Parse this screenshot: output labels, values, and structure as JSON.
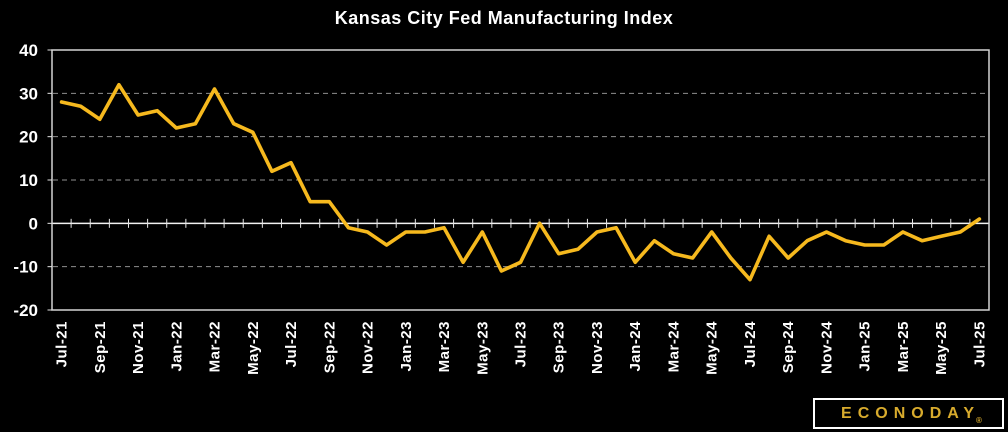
{
  "title": "Kansas City Fed Manufacturing Index",
  "logo": {
    "brand": "ECONODAY",
    "registered_mark": "®"
  },
  "colors": {
    "background": "#000000",
    "line": "#f6b91e",
    "text": "#ffffff",
    "gridline": "#8f8f8f",
    "zero_axis": "#f2f2f2",
    "plot_border": "#d4d4d4",
    "tick": "#e5e5e5",
    "logo_gold": "#d8ab2d",
    "logo_border": "#ffffff"
  },
  "chart_data": {
    "type": "line",
    "title": "Kansas City Fed Manufacturing Index",
    "series_name": "Kansas City Fed Manufacturing Index",
    "x": [
      "Jul-21",
      "Aug-21",
      "Sep-21",
      "Oct-21",
      "Nov-21",
      "Dec-21",
      "Jan-22",
      "Feb-22",
      "Mar-22",
      "Apr-22",
      "May-22",
      "Jun-22",
      "Jul-22",
      "Aug-22",
      "Sep-22",
      "Oct-22",
      "Nov-22",
      "Dec-22",
      "Jan-23",
      "Feb-23",
      "Mar-23",
      "Apr-23",
      "May-23",
      "Jun-23",
      "Jul-23",
      "Aug-23",
      "Sep-23",
      "Oct-23",
      "Nov-23",
      "Dec-23",
      "Jan-24",
      "Feb-24",
      "Mar-24",
      "Apr-24",
      "May-24",
      "Jun-24",
      "Jul-24",
      "Aug-24",
      "Sep-24",
      "Oct-24",
      "Nov-24",
      "Dec-24",
      "Jan-25",
      "Feb-25",
      "Mar-25",
      "Apr-25",
      "May-25",
      "Jun-25",
      "Jul-25"
    ],
    "values": [
      28,
      27,
      24,
      32,
      25,
      26,
      22,
      23,
      31,
      23,
      21,
      12,
      14,
      5,
      5,
      -1,
      -2,
      -5,
      -2,
      -2,
      -1,
      -9,
      -2,
      -11,
      -9,
      0,
      -7,
      -6,
      -2,
      -1,
      -9,
      -4,
      -7,
      -8,
      -2,
      -8,
      -13,
      -3,
      -8,
      -4,
      -2,
      -4,
      -5,
      -5,
      -2,
      -4,
      -3,
      -2,
      1
    ],
    "x_label_every": 2,
    "x_labels_shown": [
      "Jul-21",
      "Sep-21",
      "Nov-21",
      "Jan-22",
      "Mar-22",
      "May-22",
      "Jul-22",
      "Sep-22",
      "Nov-22",
      "Jan-23",
      "Mar-23",
      "May-23",
      "Jul-23",
      "Sep-23",
      "Nov-23",
      "Jan-24",
      "Mar-24",
      "May-24",
      "Jul-24",
      "Sep-24",
      "Nov-24",
      "Jan-25",
      "Mar-25",
      "May-25",
      "Jul-25"
    ],
    "xlabel": "",
    "ylabel": "",
    "ylim": [
      -20,
      40
    ],
    "y_ticks": [
      40,
      30,
      20,
      10,
      0,
      -10,
      -20
    ],
    "dashed_gridlines_at": [
      30,
      20,
      10,
      -10
    ],
    "zero_axis": true,
    "grid": true,
    "legend_position": "none"
  }
}
